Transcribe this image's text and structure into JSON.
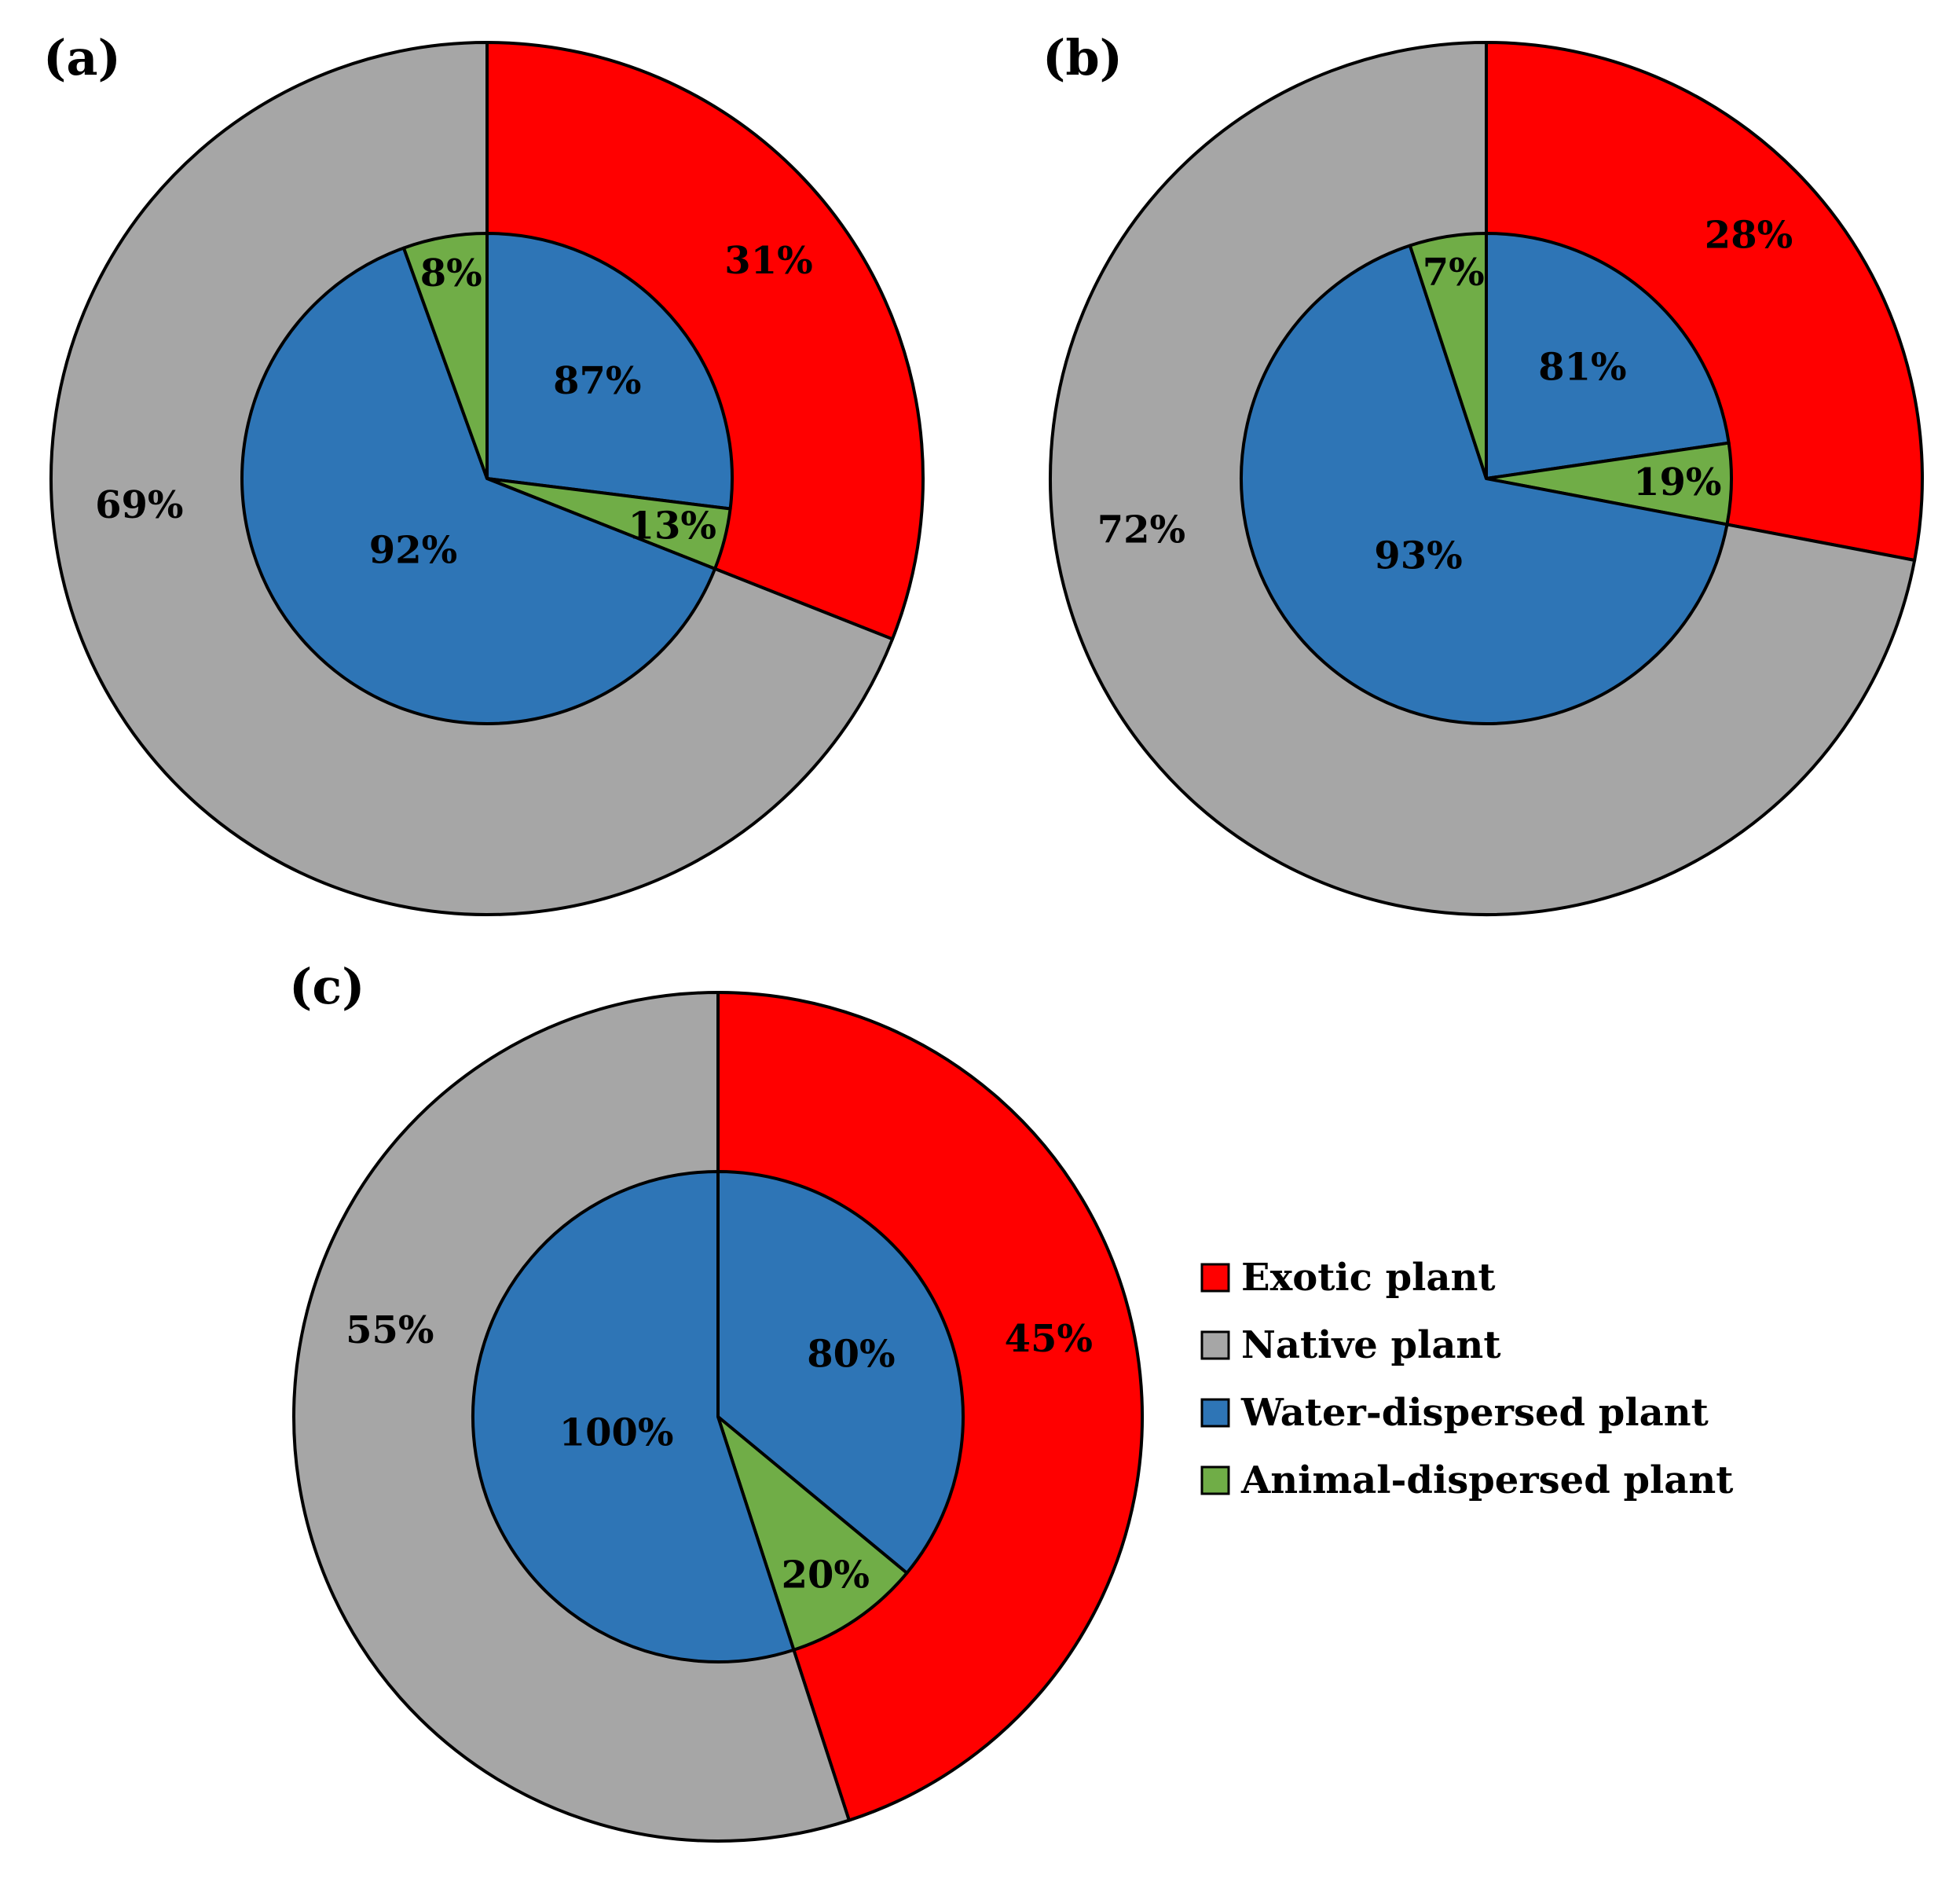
{
  "chart_data": [
    {
      "type": "pie",
      "panel_label": "(a)",
      "outer": {
        "categories": [
          "Exotic plant",
          "Native plant"
        ],
        "values": [
          31,
          69
        ],
        "labels": [
          "31%",
          "69%"
        ]
      },
      "inner_exotic": {
        "categories": [
          "Water-dispersed plant",
          "Animal-dispersed plant"
        ],
        "values": [
          87,
          13
        ],
        "labels": [
          "87%",
          "13%"
        ]
      },
      "inner_native": {
        "categories": [
          "Water-dispersed plant",
          "Animal-dispersed plant"
        ],
        "values": [
          92,
          8
        ],
        "labels": [
          "92%",
          "8%"
        ]
      }
    },
    {
      "type": "pie",
      "panel_label": "(b)",
      "outer": {
        "categories": [
          "Exotic plant",
          "Native plant"
        ],
        "values": [
          28,
          72
        ],
        "labels": [
          "28%",
          "72%"
        ]
      },
      "inner_exotic": {
        "categories": [
          "Water-dispersed plant",
          "Animal-dispersed plant"
        ],
        "values": [
          81,
          19
        ],
        "labels": [
          "81%",
          "19%"
        ]
      },
      "inner_native": {
        "categories": [
          "Water-dispersed plant",
          "Animal-dispersed plant"
        ],
        "values": [
          93,
          7
        ],
        "labels": [
          "93%",
          "7%"
        ]
      }
    },
    {
      "type": "pie",
      "panel_label": "(c)",
      "outer": {
        "categories": [
          "Exotic plant",
          "Native plant"
        ],
        "values": [
          45,
          55
        ],
        "labels": [
          "45%",
          "55%"
        ]
      },
      "inner_exotic": {
        "categories": [
          "Water-dispersed plant",
          "Animal-dispersed plant"
        ],
        "values": [
          80,
          20
        ],
        "labels": [
          "80%",
          "20%"
        ]
      },
      "inner_native": {
        "categories": [
          "Water-dispersed plant",
          "Animal-dispersed plant"
        ],
        "values": [
          100,
          0
        ],
        "labels": [
          "100%",
          ""
        ]
      }
    }
  ],
  "legend": {
    "position": "right of panel (c)",
    "items": [
      {
        "label": "Exotic plant",
        "color": "#ff0000"
      },
      {
        "label": "Native plant",
        "color": "#a6a6a6"
      },
      {
        "label": "Water-dispersed plant",
        "color": "#2e75b6"
      },
      {
        "label": "Animal-dispersed plant",
        "color": "#70ad47"
      }
    ]
  },
  "colors": {
    "exotic": "#ff0000",
    "native": "#a6a6a6",
    "water": "#2e75b6",
    "animal": "#70ad47"
  }
}
